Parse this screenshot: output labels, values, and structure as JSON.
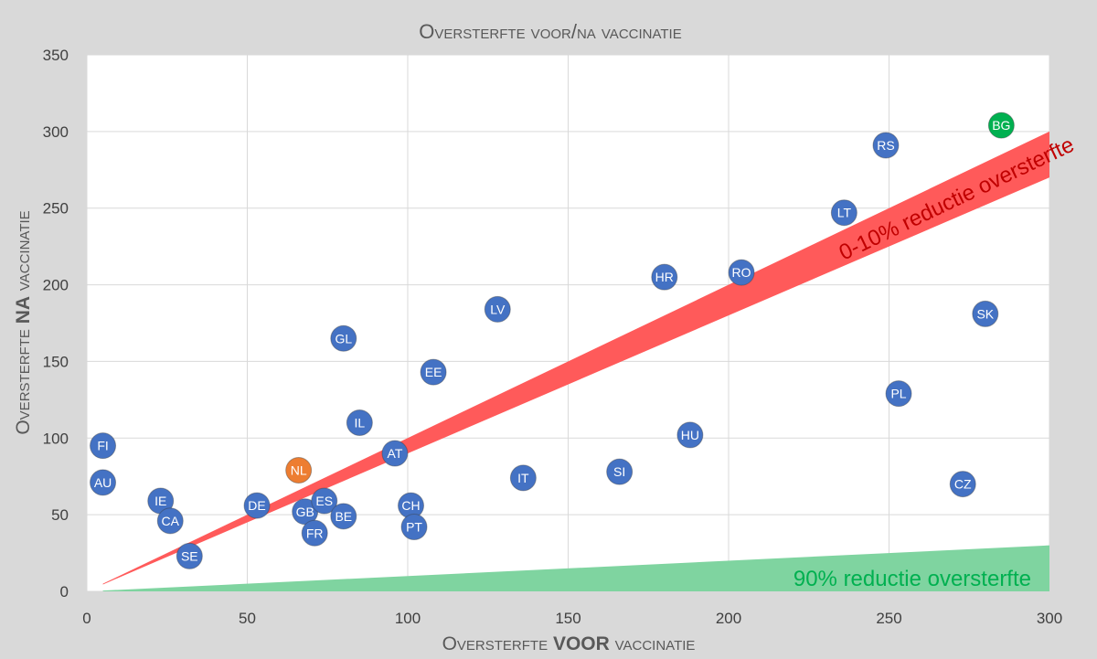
{
  "chart_data": {
    "type": "scatter",
    "title": "Oversterfte voor/na vaccinatie",
    "xlabel": [
      "Oversterfte ",
      "VOOR",
      " vaccinatie"
    ],
    "ylabel": [
      "Oversterfte ",
      "NA",
      " vaccinatie"
    ],
    "xlim": [
      0,
      300
    ],
    "ylim": [
      0,
      350
    ],
    "x_ticks": [
      0,
      50,
      100,
      150,
      200,
      250,
      300
    ],
    "y_ticks": [
      0,
      50,
      100,
      150,
      200,
      250,
      300,
      350
    ],
    "grid": true,
    "bands": [
      {
        "label": "0-10% reductie oversterfte",
        "color": "#ff5a5a",
        "color_text": "#c00000",
        "slope_low": 0.9,
        "slope_high": 1.0
      },
      {
        "label": "90% reductie oversterfte",
        "color": "#7fd4a0",
        "color_text": "#00b050",
        "slope_low": 0.0,
        "slope_high": 0.1
      }
    ],
    "series": [
      {
        "points": [
          {
            "label": "FI",
            "x": 5,
            "y": 95,
            "color": "#4472c4"
          },
          {
            "label": "AU",
            "x": 5,
            "y": 71,
            "color": "#4472c4"
          },
          {
            "label": "IE",
            "x": 23,
            "y": 59,
            "color": "#4472c4"
          },
          {
            "label": "CA",
            "x": 26,
            "y": 46,
            "color": "#4472c4"
          },
          {
            "label": "SE",
            "x": 32,
            "y": 23,
            "color": "#4472c4"
          },
          {
            "label": "DE",
            "x": 53,
            "y": 56,
            "color": "#4472c4"
          },
          {
            "label": "NL",
            "x": 66,
            "y": 79,
            "color": "#ed7d31"
          },
          {
            "label": "GB",
            "x": 68,
            "y": 52,
            "color": "#4472c4"
          },
          {
            "label": "ES",
            "x": 74,
            "y": 59,
            "color": "#4472c4"
          },
          {
            "label": "FR",
            "x": 71,
            "y": 38,
            "color": "#4472c4"
          },
          {
            "label": "BE",
            "x": 80,
            "y": 49,
            "color": "#4472c4"
          },
          {
            "label": "GL",
            "x": 80,
            "y": 165,
            "color": "#4472c4"
          },
          {
            "label": "IL",
            "x": 85,
            "y": 110,
            "color": "#4472c4"
          },
          {
            "label": "AT",
            "x": 96,
            "y": 90,
            "color": "#4472c4"
          },
          {
            "label": "CH",
            "x": 101,
            "y": 56,
            "color": "#4472c4"
          },
          {
            "label": "PT",
            "x": 102,
            "y": 42,
            "color": "#4472c4"
          },
          {
            "label": "EE",
            "x": 108,
            "y": 143,
            "color": "#4472c4"
          },
          {
            "label": "LV",
            "x": 128,
            "y": 184,
            "color": "#4472c4"
          },
          {
            "label": "IT",
            "x": 136,
            "y": 74,
            "color": "#4472c4"
          },
          {
            "label": "SI",
            "x": 166,
            "y": 78,
            "color": "#4472c4"
          },
          {
            "label": "HR",
            "x": 180,
            "y": 205,
            "color": "#4472c4"
          },
          {
            "label": "HU",
            "x": 188,
            "y": 102,
            "color": "#4472c4"
          },
          {
            "label": "RO",
            "x": 204,
            "y": 208,
            "color": "#4472c4"
          },
          {
            "label": "LT",
            "x": 236,
            "y": 247,
            "color": "#4472c4"
          },
          {
            "label": "RS",
            "x": 249,
            "y": 291,
            "color": "#4472c4"
          },
          {
            "label": "PL",
            "x": 253,
            "y": 129,
            "color": "#4472c4"
          },
          {
            "label": "CZ",
            "x": 273,
            "y": 70,
            "color": "#4472c4"
          },
          {
            "label": "SK",
            "x": 280,
            "y": 181,
            "color": "#4472c4"
          },
          {
            "label": "BG",
            "x": 285,
            "y": 304,
            "color": "#00b050"
          }
        ]
      }
    ]
  }
}
